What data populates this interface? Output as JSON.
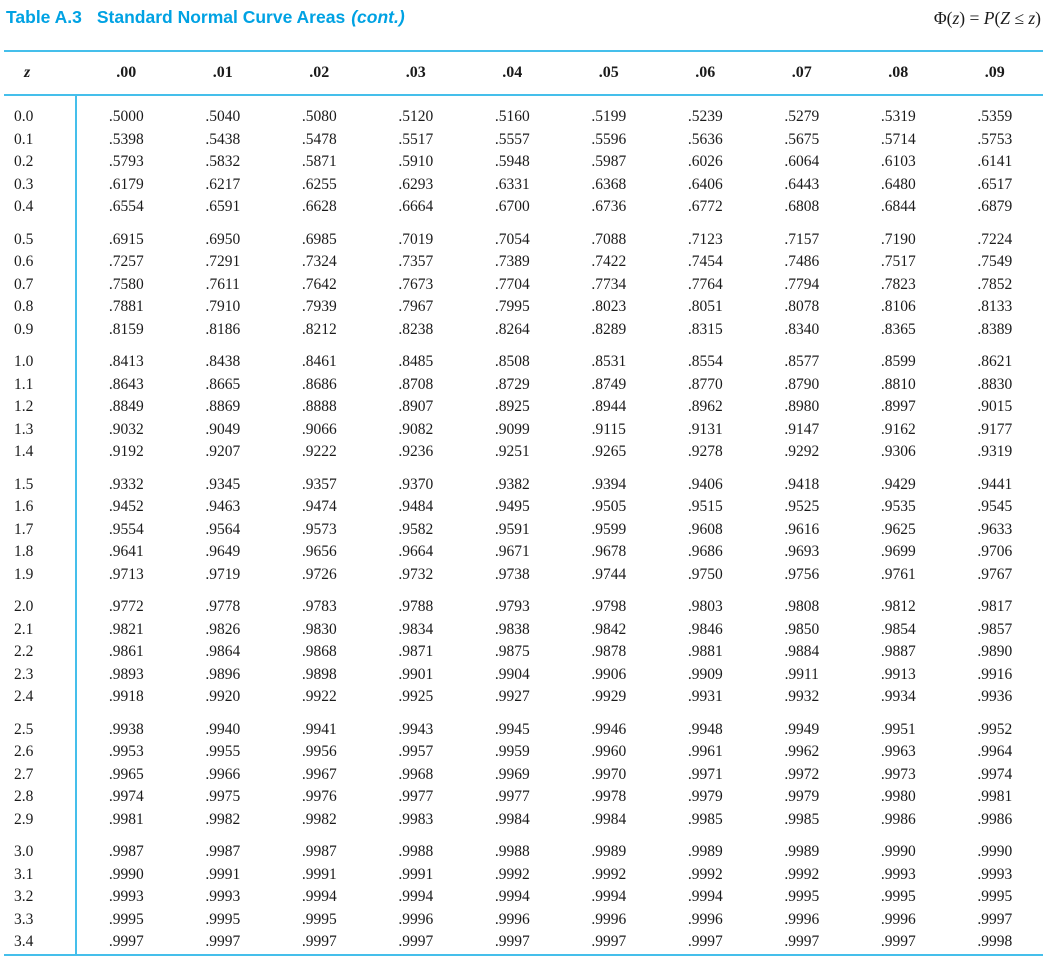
{
  "header": {
    "table_label": "Table A.3",
    "title": "Standard Normal Curve Areas",
    "cont": "(cont.)"
  },
  "formula": {
    "s1": "Φ(",
    "s2": "z",
    "s3": ") = ",
    "s4": "P",
    "s5": "(",
    "s6": "Z",
    "s7": " ≤ ",
    "s8": "z",
    "s9": ")"
  },
  "colors": {
    "accent": "#00A2E3",
    "rule": "#45BFEB",
    "text": "#1b1b1b"
  },
  "table": {
    "z_header": "z",
    "col_headers": [
      ".00",
      ".01",
      ".02",
      ".03",
      ".04",
      ".05",
      ".06",
      ".07",
      ".08",
      ".09"
    ],
    "blocks": [
      {
        "rows": [
          {
            "z": "0.0",
            "values": [
              ".5000",
              ".5040",
              ".5080",
              ".5120",
              ".5160",
              ".5199",
              ".5239",
              ".5279",
              ".5319",
              ".5359"
            ]
          },
          {
            "z": "0.1",
            "values": [
              ".5398",
              ".5438",
              ".5478",
              ".5517",
              ".5557",
              ".5596",
              ".5636",
              ".5675",
              ".5714",
              ".5753"
            ]
          },
          {
            "z": "0.2",
            "values": [
              ".5793",
              ".5832",
              ".5871",
              ".5910",
              ".5948",
              ".5987",
              ".6026",
              ".6064",
              ".6103",
              ".6141"
            ]
          },
          {
            "z": "0.3",
            "values": [
              ".6179",
              ".6217",
              ".6255",
              ".6293",
              ".6331",
              ".6368",
              ".6406",
              ".6443",
              ".6480",
              ".6517"
            ]
          },
          {
            "z": "0.4",
            "values": [
              ".6554",
              ".6591",
              ".6628",
              ".6664",
              ".6700",
              ".6736",
              ".6772",
              ".6808",
              ".6844",
              ".6879"
            ]
          }
        ]
      },
      {
        "rows": [
          {
            "z": "0.5",
            "values": [
              ".6915",
              ".6950",
              ".6985",
              ".7019",
              ".7054",
              ".7088",
              ".7123",
              ".7157",
              ".7190",
              ".7224"
            ]
          },
          {
            "z": "0.6",
            "values": [
              ".7257",
              ".7291",
              ".7324",
              ".7357",
              ".7389",
              ".7422",
              ".7454",
              ".7486",
              ".7517",
              ".7549"
            ]
          },
          {
            "z": "0.7",
            "values": [
              ".7580",
              ".7611",
              ".7642",
              ".7673",
              ".7704",
              ".7734",
              ".7764",
              ".7794",
              ".7823",
              ".7852"
            ]
          },
          {
            "z": "0.8",
            "values": [
              ".7881",
              ".7910",
              ".7939",
              ".7967",
              ".7995",
              ".8023",
              ".8051",
              ".8078",
              ".8106",
              ".8133"
            ]
          },
          {
            "z": "0.9",
            "values": [
              ".8159",
              ".8186",
              ".8212",
              ".8238",
              ".8264",
              ".8289",
              ".8315",
              ".8340",
              ".8365",
              ".8389"
            ]
          }
        ]
      },
      {
        "rows": [
          {
            "z": "1.0",
            "values": [
              ".8413",
              ".8438",
              ".8461",
              ".8485",
              ".8508",
              ".8531",
              ".8554",
              ".8577",
              ".8599",
              ".8621"
            ]
          },
          {
            "z": "1.1",
            "values": [
              ".8643",
              ".8665",
              ".8686",
              ".8708",
              ".8729",
              ".8749",
              ".8770",
              ".8790",
              ".8810",
              ".8830"
            ]
          },
          {
            "z": "1.2",
            "values": [
              ".8849",
              ".8869",
              ".8888",
              ".8907",
              ".8925",
              ".8944",
              ".8962",
              ".8980",
              ".8997",
              ".9015"
            ]
          },
          {
            "z": "1.3",
            "values": [
              ".9032",
              ".9049",
              ".9066",
              ".9082",
              ".9099",
              ".9115",
              ".9131",
              ".9147",
              ".9162",
              ".9177"
            ]
          },
          {
            "z": "1.4",
            "values": [
              ".9192",
              ".9207",
              ".9222",
              ".9236",
              ".9251",
              ".9265",
              ".9278",
              ".9292",
              ".9306",
              ".9319"
            ]
          }
        ]
      },
      {
        "rows": [
          {
            "z": "1.5",
            "values": [
              ".9332",
              ".9345",
              ".9357",
              ".9370",
              ".9382",
              ".9394",
              ".9406",
              ".9418",
              ".9429",
              ".9441"
            ]
          },
          {
            "z": "1.6",
            "values": [
              ".9452",
              ".9463",
              ".9474",
              ".9484",
              ".9495",
              ".9505",
              ".9515",
              ".9525",
              ".9535",
              ".9545"
            ]
          },
          {
            "z": "1.7",
            "values": [
              ".9554",
              ".9564",
              ".9573",
              ".9582",
              ".9591",
              ".9599",
              ".9608",
              ".9616",
              ".9625",
              ".9633"
            ]
          },
          {
            "z": "1.8",
            "values": [
              ".9641",
              ".9649",
              ".9656",
              ".9664",
              ".9671",
              ".9678",
              ".9686",
              ".9693",
              ".9699",
              ".9706"
            ]
          },
          {
            "z": "1.9",
            "values": [
              ".9713",
              ".9719",
              ".9726",
              ".9732",
              ".9738",
              ".9744",
              ".9750",
              ".9756",
              ".9761",
              ".9767"
            ]
          }
        ]
      },
      {
        "rows": [
          {
            "z": "2.0",
            "values": [
              ".9772",
              ".9778",
              ".9783",
              ".9788",
              ".9793",
              ".9798",
              ".9803",
              ".9808",
              ".9812",
              ".9817"
            ]
          },
          {
            "z": "2.1",
            "values": [
              ".9821",
              ".9826",
              ".9830",
              ".9834",
              ".9838",
              ".9842",
              ".9846",
              ".9850",
              ".9854",
              ".9857"
            ]
          },
          {
            "z": "2.2",
            "values": [
              ".9861",
              ".9864",
              ".9868",
              ".9871",
              ".9875",
              ".9878",
              ".9881",
              ".9884",
              ".9887",
              ".9890"
            ]
          },
          {
            "z": "2.3",
            "values": [
              ".9893",
              ".9896",
              ".9898",
              ".9901",
              ".9904",
              ".9906",
              ".9909",
              ".9911",
              ".9913",
              ".9916"
            ]
          },
          {
            "z": "2.4",
            "values": [
              ".9918",
              ".9920",
              ".9922",
              ".9925",
              ".9927",
              ".9929",
              ".9931",
              ".9932",
              ".9934",
              ".9936"
            ]
          }
        ]
      },
      {
        "rows": [
          {
            "z": "2.5",
            "values": [
              ".9938",
              ".9940",
              ".9941",
              ".9943",
              ".9945",
              ".9946",
              ".9948",
              ".9949",
              ".9951",
              ".9952"
            ]
          },
          {
            "z": "2.6",
            "values": [
              ".9953",
              ".9955",
              ".9956",
              ".9957",
              ".9959",
              ".9960",
              ".9961",
              ".9962",
              ".9963",
              ".9964"
            ]
          },
          {
            "z": "2.7",
            "values": [
              ".9965",
              ".9966",
              ".9967",
              ".9968",
              ".9969",
              ".9970",
              ".9971",
              ".9972",
              ".9973",
              ".9974"
            ]
          },
          {
            "z": "2.8",
            "values": [
              ".9974",
              ".9975",
              ".9976",
              ".9977",
              ".9977",
              ".9978",
              ".9979",
              ".9979",
              ".9980",
              ".9981"
            ]
          },
          {
            "z": "2.9",
            "values": [
              ".9981",
              ".9982",
              ".9982",
              ".9983",
              ".9984",
              ".9984",
              ".9985",
              ".9985",
              ".9986",
              ".9986"
            ]
          }
        ]
      },
      {
        "rows": [
          {
            "z": "3.0",
            "values": [
              ".9987",
              ".9987",
              ".9987",
              ".9988",
              ".9988",
              ".9989",
              ".9989",
              ".9989",
              ".9990",
              ".9990"
            ]
          },
          {
            "z": "3.1",
            "values": [
              ".9990",
              ".9991",
              ".9991",
              ".9991",
              ".9992",
              ".9992",
              ".9992",
              ".9992",
              ".9993",
              ".9993"
            ]
          },
          {
            "z": "3.2",
            "values": [
              ".9993",
              ".9993",
              ".9994",
              ".9994",
              ".9994",
              ".9994",
              ".9994",
              ".9995",
              ".9995",
              ".9995"
            ]
          },
          {
            "z": "3.3",
            "values": [
              ".9995",
              ".9995",
              ".9995",
              ".9996",
              ".9996",
              ".9996",
              ".9996",
              ".9996",
              ".9996",
              ".9997"
            ]
          },
          {
            "z": "3.4",
            "values": [
              ".9997",
              ".9997",
              ".9997",
              ".9997",
              ".9997",
              ".9997",
              ".9997",
              ".9997",
              ".9997",
              ".9998"
            ]
          }
        ]
      }
    ]
  }
}
